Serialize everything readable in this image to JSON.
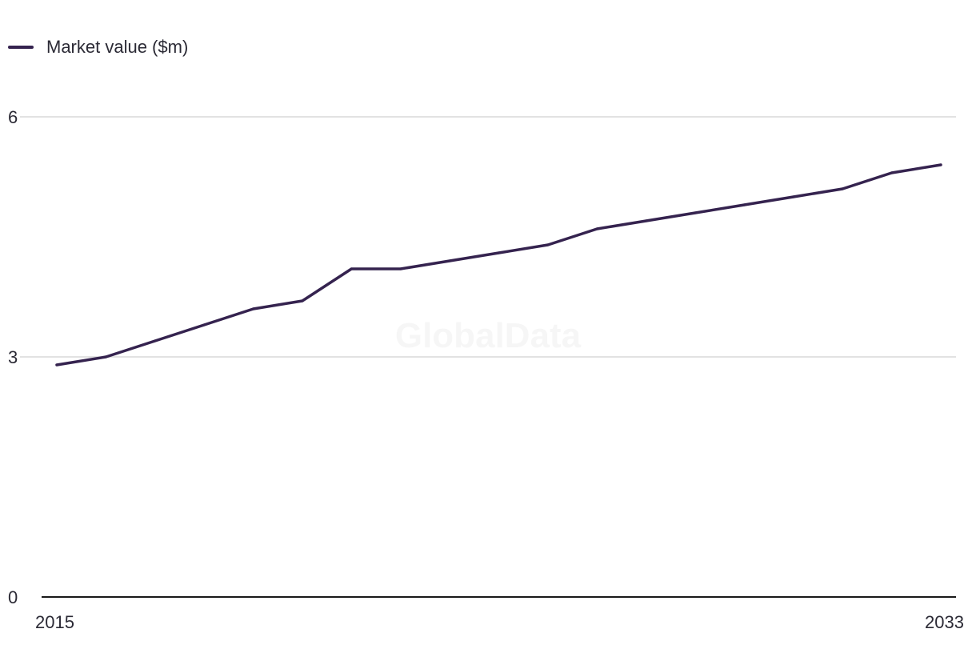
{
  "legend": {
    "label": "Market value ($m)"
  },
  "watermark": "GlobalData",
  "colors": {
    "series": "#35234f",
    "grid": "#d9d9d9",
    "axis": "#1a1a1a",
    "text": "#2b2a35"
  },
  "chart_data": {
    "type": "line",
    "x": [
      2015,
      2016,
      2017,
      2018,
      2019,
      2020,
      2021,
      2022,
      2023,
      2024,
      2025,
      2026,
      2027,
      2028,
      2029,
      2030,
      2031,
      2032,
      2033
    ],
    "series": [
      {
        "name": "Market value ($m)",
        "values": [
          2.9,
          3.0,
          3.2,
          3.4,
          3.6,
          3.7,
          4.1,
          4.1,
          4.2,
          4.3,
          4.4,
          4.6,
          4.7,
          4.8,
          4.9,
          5.0,
          5.1,
          5.3,
          5.4
        ]
      }
    ],
    "ylim": [
      0,
      6
    ],
    "y_ticks": [
      "0",
      "3",
      "6"
    ],
    "x_tick_labels": [
      "2015",
      "2033"
    ],
    "grid": true,
    "legend_position": "top-left"
  }
}
